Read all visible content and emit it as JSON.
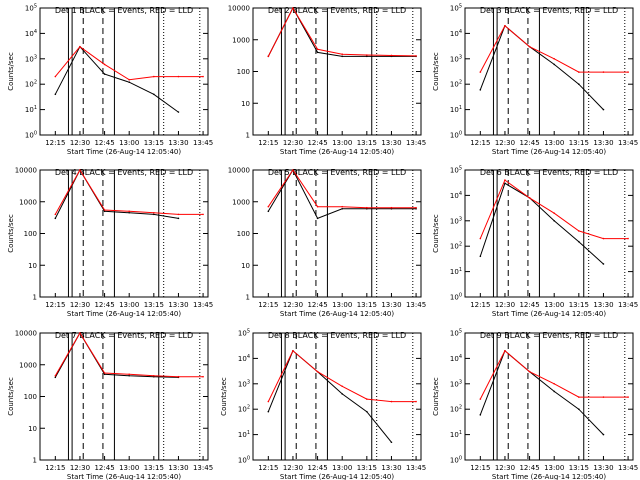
{
  "page": {
    "xlabel_all": "Start Time (26-Aug-14 12:05:40)",
    "x_ticks": [
      "12:15",
      "12:30",
      "12:45",
      "13:00",
      "13:15",
      "13:30",
      "13:45"
    ],
    "colors": {
      "events": "#000000",
      "lld": "#ff0000"
    }
  },
  "chart_data": [
    {
      "type": "line",
      "title": "Det 1 BLACK = Events, RED = LLD",
      "ylabel": "Counts/sec",
      "yscale": "log",
      "ylim": [
        1,
        100000
      ],
      "y_tick_labels": [
        "10^0",
        "10^1",
        "10^2",
        "10^3",
        "10^4",
        "10^5"
      ],
      "x": [
        "12:15",
        "12:30",
        "12:45",
        "13:00",
        "13:15",
        "13:30",
        "13:45"
      ],
      "series": [
        {
          "values": [
            40,
            3000,
            250,
            120,
            40,
            8,
            null
          ]
        },
        {
          "values": [
            200,
            3000,
            600,
            150,
            200,
            200,
            200
          ]
        }
      ]
    },
    {
      "type": "line",
      "title": "Det 2 BLACK = Events, RED = LLD",
      "ylabel": "",
      "yscale": "log",
      "ylim": [
        1,
        10000
      ],
      "y_tick_labels": [
        "1",
        "10",
        "100",
        "1000",
        "10000"
      ],
      "x": [
        "12:15",
        "12:30",
        "12:45",
        "13:00",
        "13:15",
        "13:30",
        "13:45"
      ],
      "series": [
        {
          "values": [
            300,
            10000,
            400,
            300,
            300,
            300,
            300
          ]
        },
        {
          "values": [
            300,
            10000,
            500,
            350,
            330,
            320,
            310
          ]
        }
      ]
    },
    {
      "type": "line",
      "title": "Det 3 BLACK = Events, RED = LLD",
      "ylabel": "Counts/sec",
      "yscale": "log",
      "ylim": [
        1,
        100000
      ],
      "y_tick_labels": [
        "10^0",
        "10^1",
        "10^2",
        "10^3",
        "10^4",
        "10^5"
      ],
      "x": [
        "12:15",
        "12:30",
        "12:45",
        "13:00",
        "13:15",
        "13:30",
        "13:45"
      ],
      "series": [
        {
          "values": [
            60,
            20000,
            3000,
            600,
            100,
            10,
            null
          ]
        },
        {
          "values": [
            300,
            20000,
            3000,
            1000,
            300,
            300,
            300
          ]
        }
      ]
    },
    {
      "type": "line",
      "title": "Det 4 BLACK = Events, RED = LLD",
      "ylabel": "Counts/sec",
      "yscale": "log",
      "ylim": [
        1,
        10000
      ],
      "y_tick_labels": [
        "1",
        "10",
        "100",
        "1000",
        "10000"
      ],
      "x": [
        "12:15",
        "12:30",
        "12:45",
        "13:00",
        "13:15",
        "13:30",
        "13:45"
      ],
      "series": [
        {
          "values": [
            300,
            10000,
            500,
            450,
            400,
            300,
            null
          ]
        },
        {
          "values": [
            400,
            10000,
            550,
            500,
            450,
            400,
            400
          ]
        }
      ]
    },
    {
      "type": "line",
      "title": "Det 5 BLACK = Events, RED = LLD",
      "ylabel": "",
      "yscale": "log",
      "ylim": [
        1,
        10000
      ],
      "y_tick_labels": [
        "1",
        "10",
        "100",
        "1000",
        "10000"
      ],
      "x": [
        "12:15",
        "12:30",
        "12:45",
        "13:00",
        "13:15",
        "13:30",
        "13:45"
      ],
      "series": [
        {
          "values": [
            500,
            10000,
            300,
            600,
            600,
            600,
            600
          ]
        },
        {
          "values": [
            700,
            10000,
            700,
            700,
            650,
            650,
            650
          ]
        }
      ]
    },
    {
      "type": "line",
      "title": "Det 6 BLACK = Events, RED = LLD",
      "ylabel": "Counts/sec",
      "yscale": "log",
      "ylim": [
        1,
        100000
      ],
      "y_tick_labels": [
        "10^0",
        "10^1",
        "10^2",
        "10^3",
        "10^4",
        "10^5"
      ],
      "x": [
        "12:15",
        "12:30",
        "12:45",
        "13:00",
        "13:15",
        "13:30",
        "13:45"
      ],
      "series": [
        {
          "values": [
            40,
            30000,
            8000,
            1000,
            150,
            20,
            null
          ]
        },
        {
          "values": [
            200,
            40000,
            8000,
            2000,
            400,
            200,
            200
          ]
        }
      ]
    },
    {
      "type": "line",
      "title": "Det 7 BLACK = Events, RED = LLD",
      "ylabel": "Counts/sec",
      "yscale": "log",
      "ylim": [
        1,
        10000
      ],
      "y_tick_labels": [
        "1",
        "10",
        "100",
        "1000",
        "10000"
      ],
      "x": [
        "12:15",
        "12:30",
        "12:45",
        "13:00",
        "13:15",
        "13:30",
        "13:45"
      ],
      "series": [
        {
          "values": [
            400,
            10000,
            500,
            450,
            420,
            400,
            null
          ]
        },
        {
          "values": [
            450,
            10000,
            550,
            500,
            450,
            420,
            420
          ]
        }
      ]
    },
    {
      "type": "line",
      "title": "Det 8 BLACK = Events, RED = LLD",
      "ylabel": "Counts/sec",
      "yscale": "log",
      "ylim": [
        1,
        100000
      ],
      "y_tick_labels": [
        "10^0",
        "10^1",
        "10^2",
        "10^3",
        "10^4",
        "10^5"
      ],
      "x": [
        "12:15",
        "12:30",
        "12:45",
        "13:00",
        "13:15",
        "13:30",
        "13:45"
      ],
      "series": [
        {
          "values": [
            80,
            20000,
            3000,
            400,
            80,
            5,
            null
          ]
        },
        {
          "values": [
            200,
            20000,
            3000,
            800,
            250,
            200,
            200
          ]
        }
      ]
    },
    {
      "type": "line",
      "title": "Det 9 BLACK = Events, RED = LLD",
      "ylabel": "Counts/sec",
      "yscale": "log",
      "ylim": [
        1,
        100000
      ],
      "y_tick_labels": [
        "10^0",
        "10^1",
        "10^2",
        "10^3",
        "10^4",
        "10^5"
      ],
      "x": [
        "12:15",
        "12:30",
        "12:45",
        "13:00",
        "13:15",
        "13:30",
        "13:45"
      ],
      "series": [
        {
          "values": [
            60,
            20000,
            3000,
            500,
            100,
            10,
            null
          ]
        },
        {
          "values": [
            250,
            20000,
            3000,
            1000,
            300,
            300,
            300
          ]
        }
      ]
    }
  ]
}
